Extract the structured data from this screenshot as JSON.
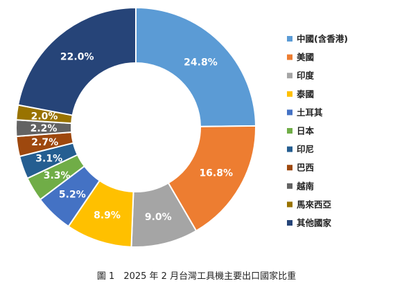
{
  "chart_data": {
    "type": "pie",
    "variant": "donut",
    "caption": "圖 1　2025 年 2 月台灣工具機主要出口國家比重",
    "legend_position": "right",
    "categories": [
      "中國(含香港)",
      "美國",
      "印度",
      "泰國",
      "土耳其",
      "日本",
      "印尼",
      "巴西",
      "越南",
      "馬來西亞",
      "其他國家"
    ],
    "values": [
      24.8,
      16.8,
      9.0,
      8.9,
      5.2,
      3.3,
      3.1,
      2.7,
      2.2,
      2.0,
      22.0
    ],
    "labels": [
      "24.8%",
      "16.8%",
      "9.0%",
      "8.9%",
      "5.2%",
      "3.3%",
      "3.1%",
      "2.7%",
      "2.2%",
      "2.0%",
      "22.0%"
    ],
    "colors": [
      "#5B9BD5",
      "#ED7D31",
      "#A5A5A5",
      "#FFC000",
      "#4472C4",
      "#70AD47",
      "#255E91",
      "#9E480E",
      "#636363",
      "#997300",
      "#264478"
    ]
  }
}
